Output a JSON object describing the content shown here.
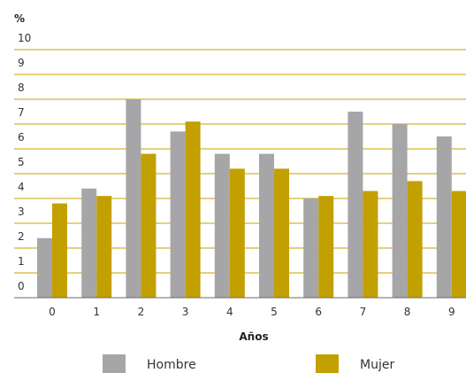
{
  "chart_data": {
    "type": "bar",
    "ylabel": "%",
    "xlabel": "Años",
    "categories": [
      "0",
      "1",
      "2",
      "3",
      "4",
      "5",
      "6",
      "7",
      "8",
      "9"
    ],
    "y_ticks": [
      "0",
      "1",
      "2",
      "3",
      "4",
      "5",
      "6",
      "7",
      "8",
      "9",
      "10"
    ],
    "ylim": [
      -0.5,
      10.5
    ],
    "grid": true,
    "legend_position": "bottom",
    "series": [
      {
        "name": "Hombre",
        "color": "#a6a6a8",
        "values": [
          1.9,
          3.9,
          7.5,
          6.2,
          5.3,
          5.3,
          3.5,
          7.0,
          6.5,
          6.0
        ]
      },
      {
        "name": "Mujer",
        "color": "#c2a000",
        "values": [
          3.3,
          3.6,
          5.3,
          6.6,
          4.7,
          4.7,
          3.6,
          3.8,
          4.2,
          3.8
        ]
      }
    ],
    "grid_color": "#c9a100",
    "axis_color": "#6b6b6b"
  }
}
